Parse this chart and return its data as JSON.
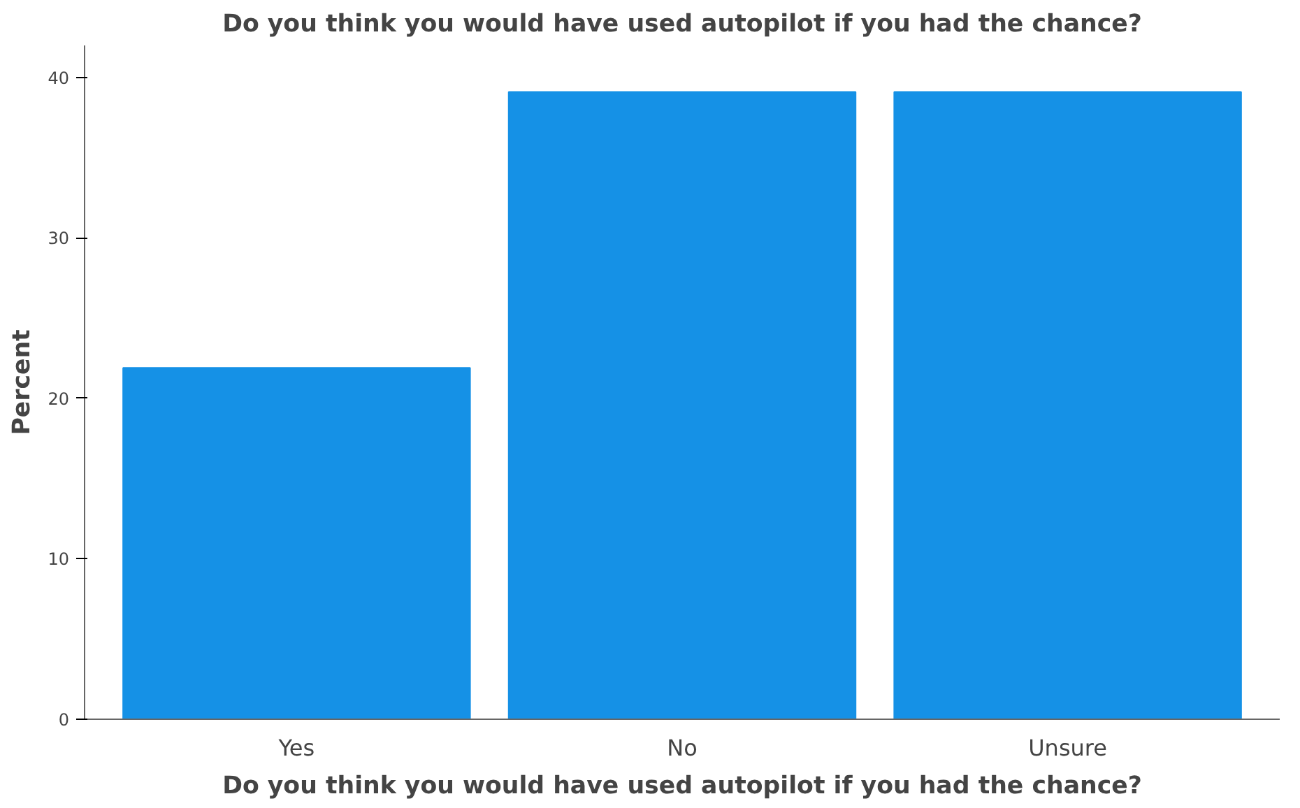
{
  "chart_data": {
    "type": "bar",
    "title": "Do you think you would have used autopilot if you had the chance?",
    "xlabel": "Do you think you would have used autopilot if you had the chance?",
    "ylabel": "Percent",
    "categories": [
      "Yes",
      "No",
      "Unsure"
    ],
    "values": [
      21.9,
      39.1,
      39.1
    ],
    "color": "#1591e6",
    "ylim": [
      0,
      42
    ],
    "yticks": [
      0,
      10,
      20,
      30,
      40
    ],
    "grid": false
  }
}
